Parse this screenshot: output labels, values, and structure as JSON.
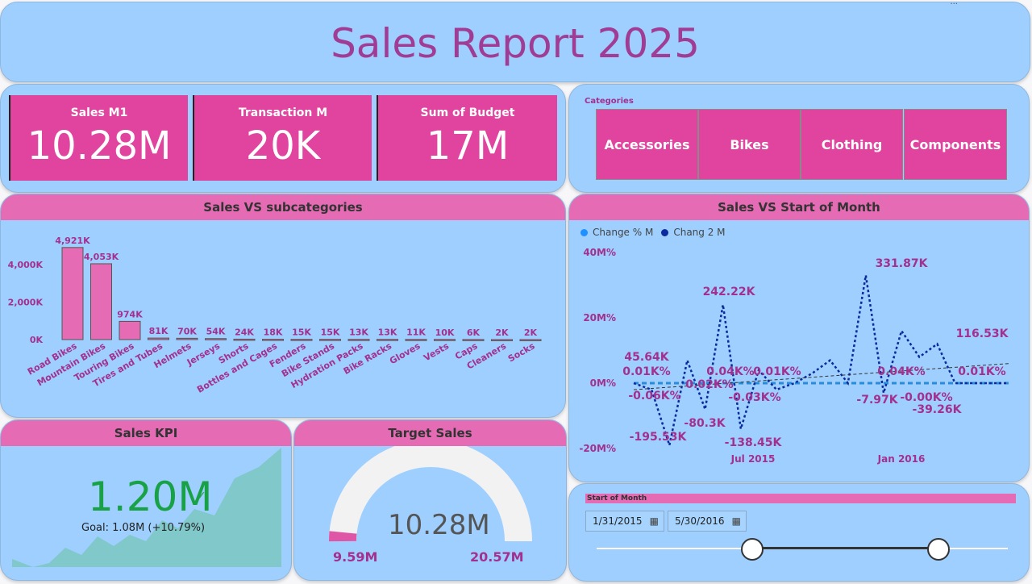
{
  "title": "Sales Report 2025",
  "kpis": [
    {
      "label": "Sales M1",
      "value": "10.28M"
    },
    {
      "label": "Transaction M",
      "value": "20K"
    },
    {
      "label": "Sum of Budget",
      "value": "17M"
    }
  ],
  "categories": {
    "label": "Categories",
    "items": [
      "Accessories",
      "Bikes",
      "Clothing",
      "Components"
    ]
  },
  "colors": {
    "accent": "#e0449f",
    "panel": "#9ecfff",
    "header": "#e56bb4",
    "text": "#a3308f"
  },
  "subcat_chart": {
    "title": "Sales VS subcategories"
  },
  "line_chart": {
    "title": "Sales VS Start of Month",
    "legend": [
      "Change % M",
      "Chang 2 M"
    ]
  },
  "sales_kpi": {
    "title": "Sales KPI",
    "value": "1.20M",
    "goal": "Goal: 1.08M (+10.79%)"
  },
  "target_sales": {
    "title": "Target Sales",
    "value": "10.28M",
    "min_label": "9.59M",
    "max_label": "20.57M"
  },
  "slicer": {
    "title": "Start of Month",
    "start": "1/31/2015",
    "end": "5/30/2016",
    "calendar_icon": "calendar-icon"
  },
  "chart_data": [
    {
      "type": "bar",
      "title": "Sales VS subcategories",
      "categories": [
        "Road Bikes",
        "Mountain Bikes",
        "Touring Bikes",
        "Tires and Tubes",
        "Helmets",
        "Jerseys",
        "Shorts",
        "Bottles and Cages",
        "Fenders",
        "Bike Stands",
        "Hydration Packs",
        "Bike Racks",
        "Gloves",
        "Vests",
        "Caps",
        "Cleaners",
        "Socks"
      ],
      "values": [
        4921,
        4053,
        974,
        81,
        70,
        54,
        24,
        18,
        15,
        15,
        13,
        13,
        11,
        10,
        6,
        2,
        2
      ],
      "data_labels": [
        "4,921K",
        "4,053K",
        "974K",
        "81K",
        "70K",
        "54K",
        "24K",
        "18K",
        "15K",
        "15K",
        "13K",
        "13K",
        "11K",
        "10K",
        "6K",
        "2K",
        "2K"
      ],
      "yticks": [
        "0K",
        "2,000K",
        "4,000K"
      ],
      "ylim": [
        0,
        5000
      ]
    },
    {
      "type": "line",
      "title": "Sales VS Start of Month",
      "yticks": [
        "-20M%",
        "0M%",
        "20M%",
        "40M%"
      ],
      "ylim": [
        -20,
        40
      ],
      "xticks": [
        "Jul 2015",
        "Jan 2016"
      ],
      "series": [
        {
          "name": "Change % M",
          "values": [
            0,
            0,
            0,
            0,
            0,
            0,
            0,
            0,
            0,
            0,
            0,
            0,
            0,
            0,
            0,
            0,
            0,
            0,
            0,
            0,
            0,
            0
          ]
        },
        {
          "name": "Chang 2 M",
          "values": [
            0,
            -2,
            -19,
            7,
            -8,
            24,
            -14,
            4,
            -2,
            0,
            3,
            7,
            0,
            33,
            -3,
            16,
            8,
            12,
            0,
            0,
            0,
            0
          ]
        }
      ],
      "data_labels": [
        "45.64K",
        "0.01K%",
        "-0.06K%",
        "-195.53K",
        "-80.3K",
        "0.02K%",
        "242.22K",
        "0.04K%",
        "-138.45K",
        "-0.03K%",
        "0.01K%",
        "331.87K",
        "-7.97K",
        "0.04K%",
        "-0.00K%",
        "-39.26K",
        "116.53K",
        "0.01K%"
      ]
    }
  ]
}
